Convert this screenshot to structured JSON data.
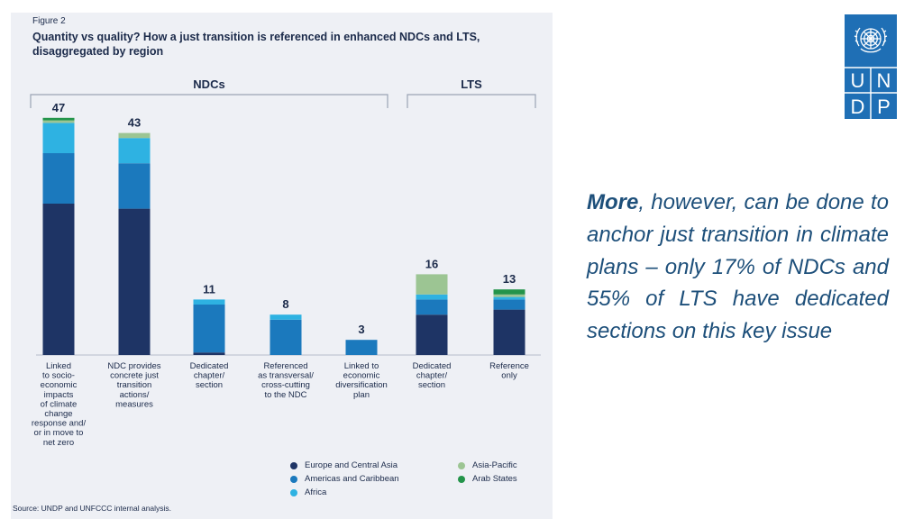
{
  "figure": {
    "label": "Figure 2",
    "title": "Quantity vs quality? How a just transition is referenced in enhanced NDCs and LTS, disaggregated by region",
    "source": "Source: UNDP and UNFCCC internal analysis."
  },
  "colors": {
    "europe": "#1e3465",
    "americas": "#1b79bd",
    "africa": "#2eb2e2",
    "asia_pacific": "#9cc593",
    "arab": "#23944a"
  },
  "chart_data": {
    "type": "bar",
    "stacked": true,
    "groups": [
      {
        "label": "NDCs",
        "categories": [
          0,
          1,
          2,
          3,
          4
        ]
      },
      {
        "label": "LTS",
        "categories": [
          5,
          6
        ]
      }
    ],
    "categories": [
      "Linked to socio-economic impacts of climate change response and/ or in move to net zero",
      "NDC provides concrete just transition actions/ measures",
      "Dedicated chapter/ section",
      "Referenced as transversal/ cross-cutting to the NDC",
      "Linked to economic diversification plan",
      "Dedicated chapter/ section",
      "Reference only"
    ],
    "category_lines": [
      [
        "Linked",
        "to socio-",
        "economic",
        "impacts",
        "of climate",
        "change",
        "response and/",
        "or in move to",
        "net zero"
      ],
      [
        "NDC provides",
        "concrete just",
        "transition",
        "actions/",
        "measures"
      ],
      [
        "Dedicated",
        "chapter/",
        "section"
      ],
      [
        "Referenced",
        "as transversal/",
        "cross-cutting",
        "to the NDC"
      ],
      [
        "Linked to",
        "economic",
        "diversification",
        "plan"
      ],
      [
        "Dedicated",
        "chapter/",
        "section"
      ],
      [
        "Reference",
        "only"
      ]
    ],
    "totals": [
      47,
      43,
      11,
      8,
      3,
      16,
      13
    ],
    "series": [
      {
        "name": "Europe and Central Asia",
        "key": "europe",
        "values": [
          30,
          29,
          0.5,
          0,
          0,
          8,
          9
        ]
      },
      {
        "name": "Americas and Caribbean",
        "key": "americas",
        "values": [
          10,
          9,
          9.5,
          7,
          3,
          3,
          2
        ]
      },
      {
        "name": "Africa",
        "key": "africa",
        "values": [
          6,
          5,
          1,
          1,
          0,
          1,
          0.5
        ]
      },
      {
        "name": "Asia-Pacific",
        "key": "asia_pacific",
        "values": [
          0.5,
          1,
          0,
          0,
          0,
          4,
          0.5
        ]
      },
      {
        "name": "Arab States",
        "key": "arab",
        "values": [
          0.5,
          0,
          0,
          0,
          0,
          0,
          1
        ]
      }
    ],
    "ylim": [
      0,
      50
    ],
    "legend_position": "bottom-right"
  },
  "body": {
    "lead": "More",
    "rest": ", however, can be done to anchor just transition in climate plans – only 17% of NDCs and 55% of LTS have dedicated sections on this key issue"
  },
  "logo": {
    "letters": [
      "U",
      "N",
      "D",
      "P"
    ],
    "emblem_icon": "un-emblem-icon"
  }
}
